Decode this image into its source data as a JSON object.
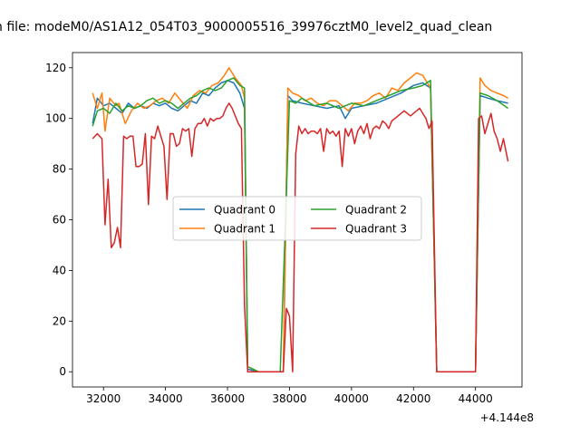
{
  "chart_data": {
    "type": "line",
    "title": "n file: modeM0/AS1A12_054T03_9000005516_39976cztM0_level2_quad_clean",
    "xlabel": "",
    "ylabel": "",
    "x_offset_label": "+4.144e8",
    "xlim": [
      31000,
      45500
    ],
    "ylim": [
      -6,
      126
    ],
    "x_ticks": [
      32000,
      34000,
      36000,
      38000,
      40000,
      42000,
      44000
    ],
    "x_tick_labels": [
      "32000",
      "34000",
      "36000",
      "38000",
      "40000",
      "42000",
      "44000"
    ],
    "y_ticks": [
      0,
      20,
      40,
      60,
      80,
      100,
      120
    ],
    "y_tick_labels": [
      "0",
      "20",
      "40",
      "60",
      "80",
      "100",
      "120"
    ],
    "grid": false,
    "legend_placement": "center",
    "series": [
      {
        "name": "Quadrant 0",
        "color": "#1f77b4",
        "x": [
          31650,
          31800,
          32000,
          32200,
          32400,
          32600,
          32800,
          33000,
          33200,
          33400,
          33600,
          33800,
          34000,
          34200,
          34400,
          34600,
          34800,
          35000,
          35200,
          35400,
          35600,
          35800,
          36000,
          36200,
          36400,
          36550,
          36650,
          37000,
          37500,
          37800,
          37950,
          38100,
          38400,
          38800,
          39200,
          39600,
          39800,
          40000,
          40400,
          40800,
          41200,
          41600,
          42000,
          42300,
          42550,
          42750,
          43200,
          43700,
          44000,
          44150,
          44400,
          44700,
          45050
        ],
        "y": [
          98,
          108,
          105,
          106,
          104,
          102,
          106,
          104,
          105,
          104,
          106,
          105,
          106,
          104,
          103,
          105,
          107,
          106,
          110,
          109,
          112,
          114,
          115,
          114,
          110,
          104,
          1,
          0,
          0,
          0,
          109,
          107,
          106,
          105,
          104,
          105,
          100,
          104,
          105,
          106,
          108,
          110,
          113,
          114,
          112,
          0,
          0,
          0,
          0,
          109,
          108,
          107,
          106
        ]
      },
      {
        "name": "Quadrant 1",
        "color": "#ff7f0e",
        "x": [
          31650,
          31800,
          31950,
          32050,
          32200,
          32400,
          32500,
          32700,
          32900,
          33100,
          33300,
          33500,
          33700,
          33900,
          34100,
          34300,
          34500,
          34700,
          34900,
          35100,
          35300,
          35500,
          35700,
          35900,
          36050,
          36250,
          36450,
          36550,
          36650,
          37000,
          37500,
          37800,
          37950,
          38100,
          38300,
          38500,
          38700,
          38900,
          39100,
          39300,
          39500,
          39700,
          39900,
          40100,
          40300,
          40500,
          40700,
          40900,
          41100,
          41300,
          41500,
          41700,
          41900,
          42100,
          42300,
          42550,
          42750,
          43200,
          43700,
          44000,
          44150,
          44300,
          44500,
          44700,
          44900,
          45050
        ],
        "y": [
          110,
          104,
          110,
          95,
          108,
          105,
          106,
          98,
          103,
          106,
          104,
          105,
          107,
          108,
          106,
          110,
          107,
          104,
          109,
          111,
          110,
          113,
          114,
          117,
          120,
          116,
          113,
          108,
          2,
          0,
          0,
          0,
          112,
          110,
          109,
          107,
          108,
          106,
          105,
          107,
          107,
          105,
          103,
          106,
          106,
          107,
          109,
          110,
          108,
          112,
          111,
          114,
          116,
          118,
          117,
          112,
          0,
          0,
          0,
          0,
          116,
          113,
          111,
          110,
          109,
          108
        ]
      },
      {
        "name": "Quadrant 2",
        "color": "#2ca02c",
        "x": [
          31650,
          31800,
          32000,
          32200,
          32400,
          32600,
          32800,
          33000,
          33200,
          33400,
          33600,
          33800,
          34000,
          34200,
          34400,
          34600,
          34800,
          35000,
          35200,
          35400,
          35600,
          35800,
          36000,
          36200,
          36400,
          36550,
          36650,
          37000,
          37500,
          37700,
          37850,
          38000,
          38200,
          38400,
          38800,
          39200,
          39600,
          40000,
          40400,
          40800,
          41200,
          41600,
          42000,
          42300,
          42550,
          42750,
          43200,
          43700,
          44000,
          44150,
          44400,
          44700,
          45050
        ],
        "y": [
          97,
          103,
          104,
          102,
          106,
          103,
          105,
          104,
          105,
          107,
          108,
          106,
          107,
          106,
          104,
          106,
          108,
          109,
          111,
          112,
          111,
          112,
          115,
          116,
          113,
          112,
          2,
          0,
          0,
          0,
          52,
          107,
          106,
          108,
          105,
          106,
          104,
          106,
          105,
          107,
          109,
          111,
          112,
          113,
          115,
          0,
          0,
          0,
          0,
          110,
          109,
          107,
          104
        ]
      },
      {
        "name": "Quadrant 3",
        "color": "#d62728",
        "x": [
          31650,
          31800,
          31950,
          32050,
          32150,
          32250,
          32350,
          32450,
          32550,
          32650,
          32750,
          32850,
          32950,
          33050,
          33150,
          33250,
          33350,
          33450,
          33550,
          33650,
          33750,
          33850,
          33950,
          34050,
          34150,
          34250,
          34350,
          34450,
          34550,
          34650,
          34750,
          34850,
          34950,
          35050,
          35150,
          35250,
          35350,
          35450,
          35550,
          35650,
          35750,
          35850,
          35950,
          36050,
          36150,
          36250,
          36350,
          36450,
          36550,
          36650,
          37000,
          37500,
          37800,
          37900,
          38000,
          38100,
          38200,
          38300,
          38400,
          38500,
          38600,
          38700,
          38800,
          38900,
          39000,
          39100,
          39200,
          39300,
          39400,
          39500,
          39600,
          39700,
          39800,
          39900,
          40000,
          40100,
          40200,
          40300,
          40400,
          40500,
          40600,
          40700,
          40800,
          40900,
          41000,
          41100,
          41200,
          41300,
          41400,
          41500,
          41600,
          41700,
          41800,
          41900,
          42000,
          42100,
          42200,
          42300,
          42400,
          42500,
          42600,
          42750,
          43200,
          43700,
          44000,
          44100,
          44200,
          44300,
          44400,
          44500,
          44600,
          44700,
          44800,
          44900,
          45050
        ],
        "y": [
          92,
          94,
          92,
          58,
          76,
          49,
          51,
          57,
          49,
          93,
          92,
          93,
          93,
          81,
          81,
          82,
          94,
          66,
          93,
          92,
          97,
          93,
          89,
          68,
          94,
          94,
          89,
          90,
          96,
          95,
          96,
          85,
          96,
          98,
          98,
          100,
          97,
          100,
          99,
          100,
          100,
          101,
          104,
          106,
          104,
          101,
          98,
          96,
          26,
          0,
          0,
          0,
          0,
          25,
          22,
          0,
          86,
          97,
          94,
          96,
          94,
          95,
          95,
          94,
          96,
          87,
          96,
          94,
          95,
          93,
          95,
          81,
          96,
          93,
          96,
          90,
          95,
          97,
          94,
          98,
          92,
          96,
          97,
          96,
          99,
          98,
          96,
          99,
          100,
          101,
          102,
          103,
          102,
          101,
          102,
          103,
          104,
          102,
          100,
          96,
          99,
          0,
          0,
          0,
          0,
          100,
          101,
          94,
          98,
          102,
          95,
          92,
          87,
          92,
          83
        ]
      }
    ]
  }
}
